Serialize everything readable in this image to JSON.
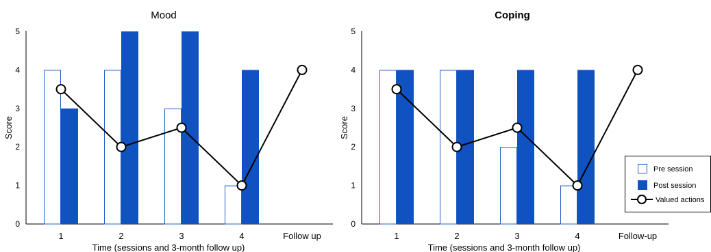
{
  "chart_data": [
    {
      "type": "bar",
      "title": "Mood",
      "title_bold": false,
      "xlabel": "Time (sessions and 3-month follow up)",
      "ylabel": "Score",
      "ylim": [
        0,
        5
      ],
      "yticks": [
        "0",
        "1",
        "2",
        "3",
        "4",
        "5"
      ],
      "categories": [
        "1",
        "2",
        "3",
        "4",
        "Follow up"
      ],
      "grid": false,
      "series": [
        {
          "name": "Pre session",
          "kind": "bar",
          "style": "outline",
          "color": "#1f5cc4",
          "values": [
            4,
            4,
            3,
            1,
            null
          ]
        },
        {
          "name": "Post session",
          "kind": "bar",
          "style": "filled",
          "color": "#0f52c0",
          "values": [
            3,
            5,
            5,
            4,
            null
          ]
        },
        {
          "name": "Valued actions",
          "kind": "line",
          "marker": "open-circle",
          "color": "#000000",
          "values": [
            3.5,
            2,
            2.5,
            1,
            4
          ]
        }
      ]
    },
    {
      "type": "bar",
      "title": "Coping",
      "title_bold": true,
      "xlabel": "Time (sessions and 3-month follow up)",
      "ylabel": "Score",
      "ylim": [
        0,
        5
      ],
      "yticks": [
        "0",
        "1",
        "2",
        "3",
        "4",
        "5"
      ],
      "categories": [
        "1",
        "2",
        "3",
        "4",
        "Follow-up"
      ],
      "grid": false,
      "legend_position": "right",
      "series": [
        {
          "name": "Pre session",
          "kind": "bar",
          "style": "outline",
          "color": "#1f5cc4",
          "values": [
            4,
            4,
            2,
            1,
            null
          ]
        },
        {
          "name": "Post session",
          "kind": "bar",
          "style": "filled",
          "color": "#0f52c0",
          "values": [
            4,
            4,
            4,
            4,
            null
          ]
        },
        {
          "name": "Valued actions",
          "kind": "line",
          "marker": "open-circle",
          "color": "#000000",
          "values": [
            3.5,
            2,
            2.5,
            1,
            4
          ]
        }
      ]
    }
  ]
}
